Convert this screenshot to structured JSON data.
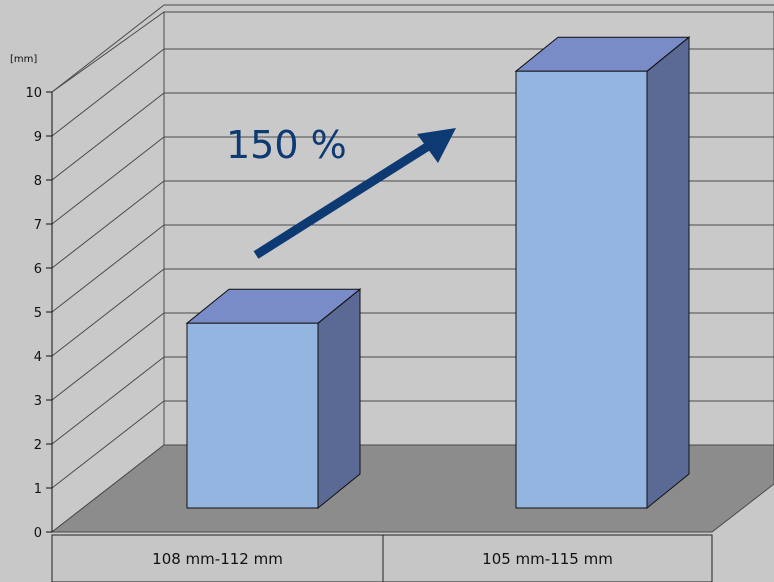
{
  "chart_data": {
    "type": "bar",
    "style": "3d",
    "categories": [
      "108 mm-112 mm",
      "105 mm-115 mm"
    ],
    "values": [
      4.4,
      10.4
    ],
    "ylabel": "[mm]",
    "ylim": [
      0,
      10
    ],
    "yticks": [
      "0",
      "1",
      "2",
      "3",
      "4",
      "5",
      "6",
      "7",
      "8",
      "9",
      "10"
    ],
    "grid": true,
    "annotation": "150 %",
    "colors": {
      "background": "#c8c8c8",
      "back_wall": "#c9c9c9",
      "floor": "#8c8c8c",
      "bar_front": "#93b5df",
      "bar_top": "#7a8cc8",
      "bar_side": "#5a6a94",
      "arrow": "#0d3a73",
      "gridline": "#4a4a4a",
      "table": "#c6c6c6"
    }
  }
}
